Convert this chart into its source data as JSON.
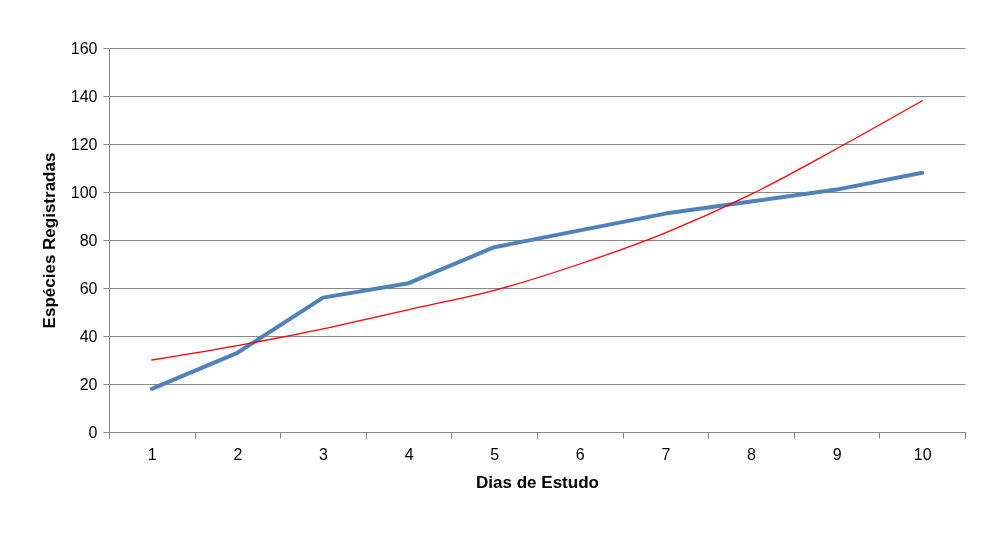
{
  "chart_data": {
    "type": "line",
    "xlabel": "Dias de Estudo",
    "ylabel": "Espécies Registradas",
    "categories": [
      "1",
      "2",
      "3",
      "4",
      "5",
      "6",
      "7",
      "8",
      "9",
      "10"
    ],
    "ylim": [
      0,
      160
    ],
    "yticks": [
      0,
      20,
      40,
      60,
      80,
      100,
      120,
      140,
      160
    ],
    "grid": "y",
    "marker": "none",
    "line_style": "solid",
    "series": [
      {
        "color": "#4f81bd",
        "values": [
          18,
          33,
          56,
          62,
          77,
          84,
          91,
          96,
          101,
          108
        ]
      },
      {
        "type": "line",
        "color": "#ff0000",
        "x": [
          "1",
          "2",
          "3",
          "4",
          "5",
          "6",
          "7",
          "8",
          "9",
          "10"
        ],
        "values": [
          30,
          36,
          43,
          51,
          59,
          70,
          83,
          99,
          118,
          138
        ]
      }
    ]
  }
}
